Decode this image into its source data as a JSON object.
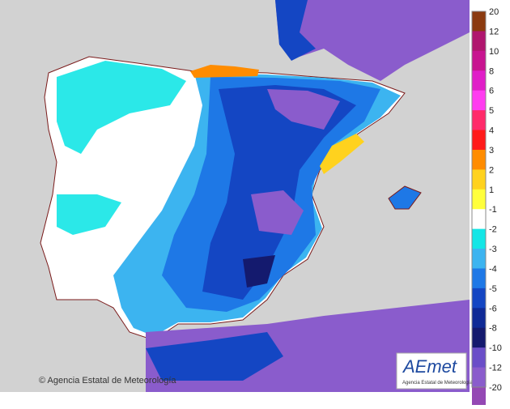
{
  "map": {
    "credit": "© Agencia Estatal de Meteorología",
    "logo": {
      "name": "AEmet",
      "subtitle": "Agencia Estatal de Meteorología"
    },
    "legend": {
      "labels": [
        "20",
        "12",
        "10",
        "8",
        "6",
        "5",
        "4",
        "3",
        "2",
        "1",
        "-1",
        "-2",
        "-3",
        "-4",
        "-5",
        "-6",
        "-8",
        "-10",
        "-12",
        "-20"
      ],
      "colors": [
        "#8b3a0f",
        "#b0166e",
        "#c81490",
        "#e01ec8",
        "#ff3cf0",
        "#ff2a6a",
        "#ff1a1a",
        "#ff8c00",
        "#ffd21e",
        "#ffff3c",
        "#ffffff",
        "#14e6e6",
        "#3cb4f0",
        "#1e78e6",
        "#1446c3",
        "#0f2a96",
        "#141a6e",
        "#6a4ec8",
        "#8a5ccc",
        "#9448b4",
        "#7a2c8c"
      ]
    }
  }
}
